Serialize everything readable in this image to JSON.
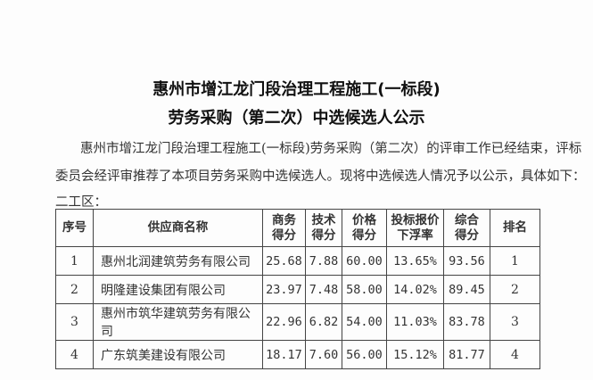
{
  "title1": "惠州市增江龙门段治理工程施工(一标段)",
  "title2": "劳务采购（第二次）中选候选人公示",
  "para1": "惠州市增江龙门段治理工程施工(一标段)劳务采购（第二次）的评审工作已经结束，评标",
  "para2": "委员会经评审推荐了本项目劳务采购中选候选人。现将中选候选人情况予以公示，具体如下：",
  "section": "二工区：",
  "headers": [
    "序号",
    "供应商名称",
    "商务\n得分",
    "技术\n得分",
    "价格\n得分",
    "投标报价\n下浮率",
    "综合\n得分",
    "排名"
  ],
  "rows": [
    [
      "1",
      "惠州北润建筑劳务有限公司",
      "25.68",
      "7.88",
      "60.00",
      "13.65%",
      "93.56",
      "1"
    ],
    [
      "2",
      "明隆建设集团有限公司",
      "23.97",
      "7.48",
      "58.00",
      "14.02%",
      "89.45",
      "2"
    ],
    [
      "3",
      "惠州市筑华建筑劳务有限公司",
      "22.96",
      "6.82",
      "54.00",
      "11.03%",
      "83.78",
      "3"
    ],
    [
      "4",
      "广东筑美建设有限公司",
      "18.17",
      "7.60",
      "56.00",
      "15.12%",
      "81.77",
      "4"
    ]
  ]
}
